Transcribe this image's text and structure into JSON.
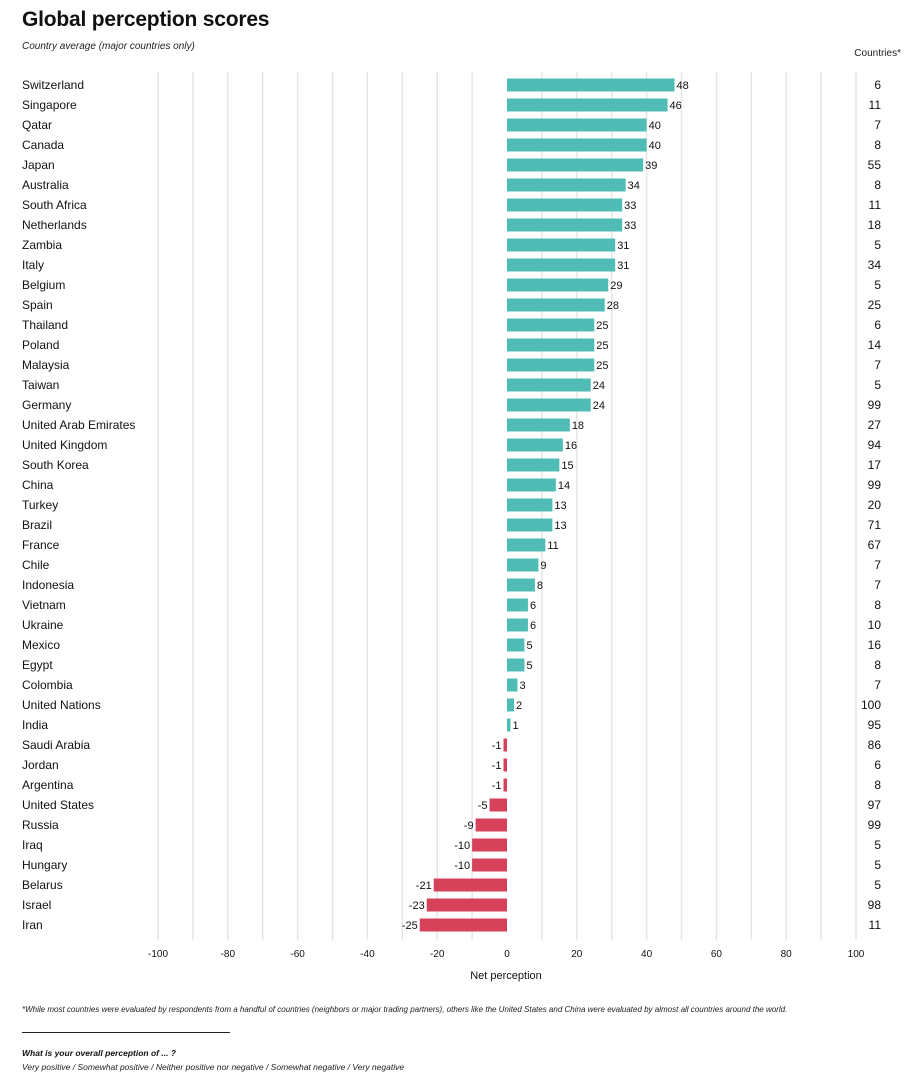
{
  "title": "Global perception scores",
  "subtitle": "Country average (major countries only)",
  "countries_header": "Countries*",
  "footnote": "*While most countries were evaluated by respondents from a handful of countries (neighbors or major trading partners), others like the United States and China were evaluated by almost all countries around the world.",
  "question": "What is your overall perception of  ... ?",
  "answer_options": "Very positive / Somewhat positive / Neither positive nor negative / Somewhat negative / Very negative",
  "colors": {
    "positive": "#4fbdb5",
    "negative": "#d6425a",
    "grid": "#e6e6e6"
  },
  "chart_data": {
    "type": "bar",
    "orientation": "horizontal",
    "title": "Global perception scores",
    "xlabel": "Net perception",
    "ylabel": "",
    "xlim": [
      -100,
      100
    ],
    "xticks": [
      -100,
      -80,
      -60,
      -40,
      -20,
      0,
      20,
      40,
      60,
      80,
      100
    ],
    "grid": true,
    "categories": [
      "Switzerland",
      "Singapore",
      "Qatar",
      "Canada",
      "Japan",
      "Australia",
      "South Africa",
      "Netherlands",
      "Zambia",
      "Italy",
      "Belgium",
      "Spain",
      "Thailand",
      "Poland",
      "Malaysia",
      "Taiwan",
      "Germany",
      "United Arab Emirates",
      "United Kingdom",
      "South Korea",
      "China",
      "Turkey",
      "Brazil",
      "France",
      "Chile",
      "Indonesia",
      "Vietnam",
      "Ukraine",
      "Mexico",
      "Egypt",
      "Colombia",
      "United Nations",
      "India",
      "Saudi Arabia",
      "Jordan",
      "Argentina",
      "United States",
      "Russia",
      "Iraq",
      "Hungary",
      "Belarus",
      "Israel",
      "Iran"
    ],
    "values": [
      48,
      46,
      40,
      40,
      39,
      34,
      33,
      33,
      31,
      31,
      29,
      28,
      25,
      25,
      25,
      24,
      24,
      18,
      16,
      15,
      14,
      13,
      13,
      11,
      9,
      8,
      6,
      6,
      5,
      5,
      3,
      2,
      1,
      -1,
      -1,
      -1,
      -5,
      -9,
      -10,
      -10,
      -21,
      -23,
      -25
    ],
    "countries": [
      6,
      11,
      7,
      8,
      55,
      8,
      11,
      18,
      5,
      34,
      5,
      25,
      6,
      14,
      7,
      5,
      99,
      27,
      94,
      17,
      99,
      20,
      71,
      67,
      7,
      7,
      8,
      10,
      16,
      8,
      7,
      100,
      95,
      86,
      6,
      8,
      97,
      99,
      5,
      5,
      5,
      98,
      11
    ]
  }
}
